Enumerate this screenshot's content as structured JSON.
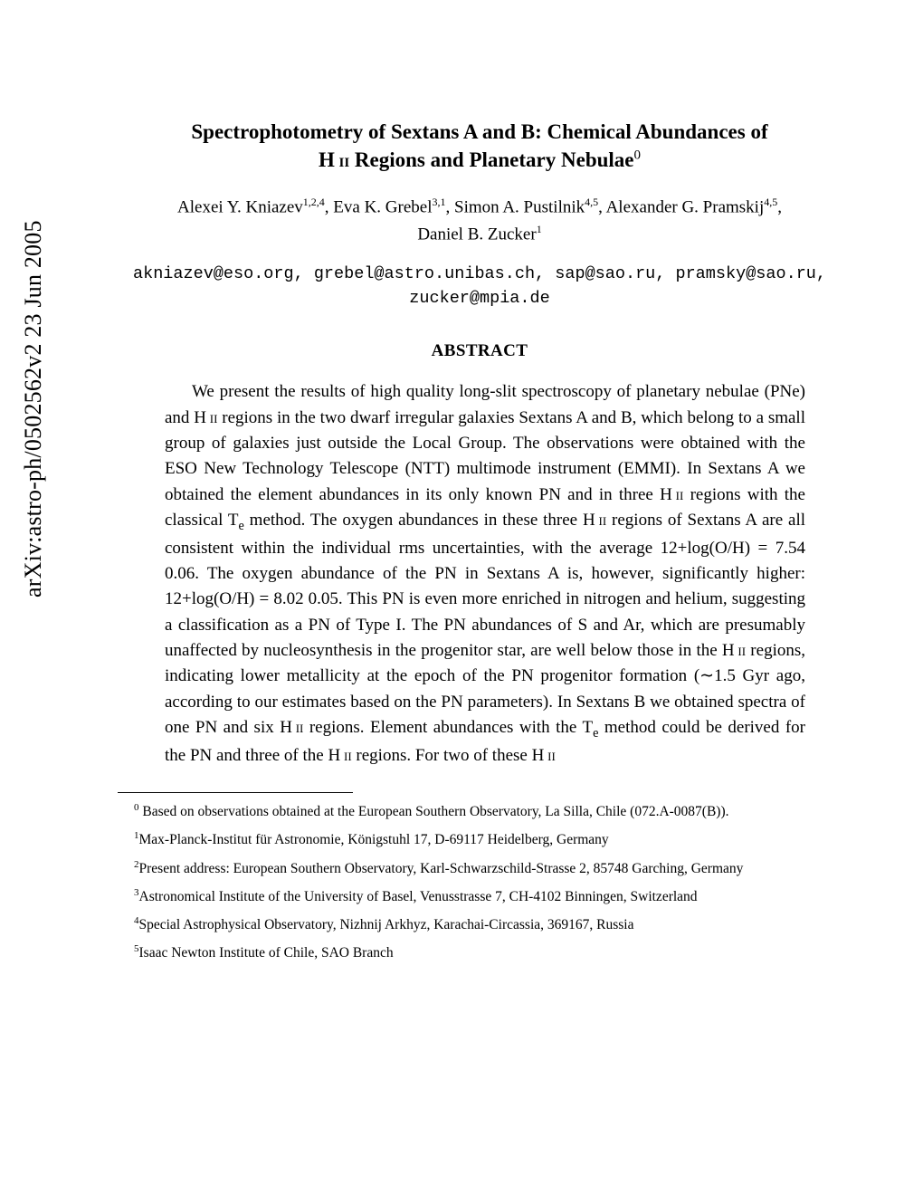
{
  "arxiv_stamp": "arXiv:astro-ph/0502562v2  23 Jun 2005",
  "title_line1": "Spectrophotometry of Sextans A and B: Chemical Abundances of",
  "title_line2_pre": "H ",
  "title_line2_sc": "ii",
  "title_line2_post": " Regions and Planetary Nebulae",
  "title_sup": "0",
  "authors_line1": "Alexei Y. Kniazev",
  "authors_aff1": "1,2,4",
  "authors_sep1": ", Eva K. Grebel",
  "authors_aff2": "3,1",
  "authors_sep2": ", Simon A. Pustilnik",
  "authors_aff3": "4,5",
  "authors_sep3": ", Alexander G. Pramskij",
  "authors_aff4": "4,5",
  "authors_sep4": ",",
  "authors_line2": "Daniel B. Zucker",
  "authors_aff5": "1",
  "emails_line1": "akniazev@eso.org, grebel@astro.unibas.ch, sap@sao.ru, pramsky@sao.ru,",
  "emails_line2": "zucker@mpia.de",
  "abstract_heading": "ABSTRACT",
  "abstract": {
    "p1_a": "We present the results of high quality long-slit spectroscopy of planetary nebulae (PNe) and H ",
    "sc1": "ii",
    "p1_b": " regions in the two dwarf irregular galaxies Sextans A and B, which belong to a small group of galaxies just outside the Local Group. The observations were obtained with the ESO New Technology Telescope (NTT) multimode instrument (EMMI). In Sextans A we obtained the element abundances in its only known PN and in three H ",
    "sc2": "ii",
    "p1_c": " regions with the classical T",
    "sub1": "e",
    "p1_d": " method. The oxygen abundances in these three H ",
    "sc3": "ii",
    "p1_e": " regions of Sextans A are all consistent within the individual rms uncertainties, with the average 12+log(O/H) = 7.54  0.06. The oxygen abundance of the PN in Sextans A is, however, significantly higher: 12+log(O/H) = 8.02  0.05. This PN is even more enriched in nitrogen and helium, suggesting a classification as a PN of Type I. The PN abundances of S and Ar, which are presumably unaffected by nucleosynthesis in the progenitor star, are well below those in the H ",
    "sc4": "ii",
    "p1_f": " regions, indicating lower metallicity at the epoch of the PN progenitor formation (∼1.5 Gyr ago, according to our estimates based on the PN parameters). In Sextans B we obtained spectra of one PN and six H ",
    "sc5": "ii",
    "p1_g": " regions. Element abundances with the T",
    "sub2": "e",
    "p1_h": " method could be derived for the PN and three of the H ",
    "sc6": "ii",
    "p1_i": " regions. For two of these H ",
    "sc7": "ii"
  },
  "footnotes": {
    "f0_sup": "0",
    "f0": " Based on observations obtained at the European Southern Observatory, La Silla, Chile (072.A-0087(B)).",
    "f1_sup": "1",
    "f1": "Max-Planck-Institut für Astronomie, Königstuhl 17, D-69117 Heidelberg, Germany",
    "f2_sup": "2",
    "f2": "Present address: European Southern Observatory, Karl-Schwarzschild-Strasse 2, 85748 Garching, Germany",
    "f3_sup": "3",
    "f3": "Astronomical Institute of the University of Basel, Venusstrasse 7, CH-4102 Binningen, Switzerland",
    "f4_sup": "4",
    "f4": "Special Astrophysical Observatory, Nizhnij Arkhyz, Karachai-Circassia, 369167, Russia",
    "f5_sup": "5",
    "f5": "Isaac Newton Institute of Chile, SAO Branch"
  }
}
